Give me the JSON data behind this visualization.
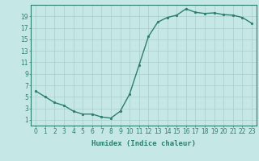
{
  "x": [
    0,
    1,
    2,
    3,
    4,
    5,
    6,
    7,
    8,
    9,
    10,
    11,
    12,
    13,
    14,
    15,
    16,
    17,
    18,
    19,
    20,
    21,
    22,
    23
  ],
  "y": [
    6,
    5,
    4,
    3.5,
    2.5,
    2,
    2,
    1.5,
    1.3,
    2.5,
    5.5,
    10.5,
    15.5,
    18,
    18.8,
    19.2,
    20.3,
    19.7,
    19.5,
    19.6,
    19.3,
    19.2,
    18.8,
    17.8
  ],
  "line_color": "#2e7d6e",
  "marker": "o",
  "marker_size": 1.8,
  "line_width": 1.0,
  "bg_color": "#c5e8e6",
  "grid_color": "#a8ceca",
  "xlabel": "Humidex (Indice chaleur)",
  "xlabel_fontsize": 6.5,
  "yticks": [
    1,
    3,
    5,
    7,
    9,
    11,
    13,
    15,
    17,
    19
  ],
  "xticks": [
    0,
    1,
    2,
    3,
    4,
    5,
    6,
    7,
    8,
    9,
    10,
    11,
    12,
    13,
    14,
    15,
    16,
    17,
    18,
    19,
    20,
    21,
    22,
    23
  ],
  "xlim": [
    -0.5,
    23.5
  ],
  "ylim": [
    0,
    21
  ],
  "tick_fontsize": 5.5,
  "axis_color": "#2e7d6e"
}
